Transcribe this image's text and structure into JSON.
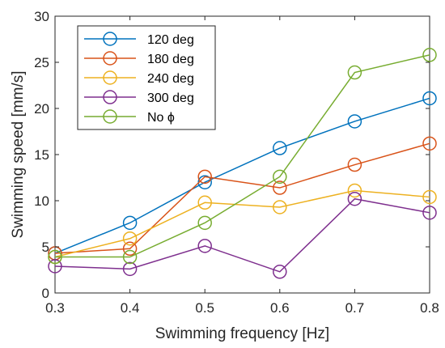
{
  "chart_data": {
    "type": "line",
    "xlabel": "Swimming frequency [Hz]",
    "ylabel": "Swimming speed [mm/s]",
    "x": [
      0.3,
      0.4,
      0.5,
      0.6,
      0.7,
      0.8
    ],
    "xticks": [
      "0.3",
      "0.4",
      "0.5",
      "0.6",
      "0.7",
      "0.8"
    ],
    "yticks": [
      "0",
      "5",
      "10",
      "15",
      "20",
      "25",
      "30"
    ],
    "xlim": [
      0.3,
      0.8
    ],
    "ylim": [
      0,
      30
    ],
    "grid": false,
    "legend_position": "top-left",
    "marker": "open-circle",
    "series": [
      {
        "name": "120 deg",
        "color": "#0072BD",
        "values": [
          4.3,
          7.6,
          12.0,
          15.7,
          18.6,
          21.1
        ]
      },
      {
        "name": "180 deg",
        "color": "#D95319",
        "values": [
          4.3,
          4.8,
          12.6,
          11.4,
          13.9,
          16.2
        ]
      },
      {
        "name": "240 deg",
        "color": "#EDB120",
        "values": [
          3.9,
          5.9,
          9.8,
          9.3,
          11.1,
          10.4
        ]
      },
      {
        "name": "300 deg",
        "color": "#7E2F8E",
        "values": [
          2.9,
          2.6,
          5.1,
          2.3,
          10.2,
          8.7
        ]
      },
      {
        "name": "No ϕ",
        "color": "#77AC30",
        "values": [
          3.9,
          3.9,
          7.6,
          12.6,
          23.9,
          25.8
        ]
      }
    ]
  }
}
